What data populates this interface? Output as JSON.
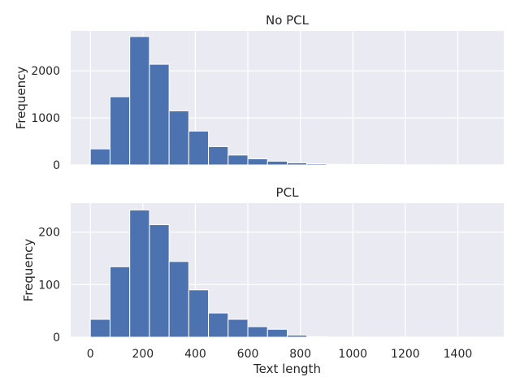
{
  "chart_data": [
    {
      "type": "bar",
      "title": "No PCL",
      "xlabel": "",
      "ylabel": "Frequency",
      "xlim": [
        -75,
        1575
      ],
      "ylim": [
        0,
        2850
      ],
      "bin_width": 75,
      "bins_start": [
        0,
        75,
        150,
        225,
        300,
        375,
        450,
        525,
        600,
        675,
        750,
        825,
        900,
        975,
        1050,
        1125,
        1200,
        1275,
        1350,
        1425
      ],
      "values": [
        340,
        1450,
        2730,
        2140,
        1150,
        720,
        390,
        210,
        130,
        80,
        45,
        25,
        12,
        8,
        5,
        3,
        2,
        2,
        1,
        1
      ],
      "x_ticks": [
        0,
        200,
        400,
        600,
        800,
        1000,
        1200,
        1400
      ],
      "x_tick_labels": [],
      "y_ticks": [
        0,
        1000,
        2000
      ],
      "y_tick_labels": [
        "0",
        "1000",
        "2000"
      ],
      "grid": true,
      "bar_color": "#4c72b0",
      "background": "#eaeaf2"
    },
    {
      "type": "bar",
      "title": "PCL",
      "xlabel": "Text length",
      "ylabel": "Frequency",
      "xlim": [
        -75,
        1575
      ],
      "ylim": [
        0,
        255
      ],
      "bin_width": 75,
      "bins_start": [
        0,
        75,
        150,
        225,
        300,
        375,
        450,
        525,
        600,
        675,
        750,
        825,
        900,
        975,
        1050,
        1125,
        1200,
        1275,
        1350,
        1425
      ],
      "values": [
        34,
        134,
        242,
        214,
        144,
        90,
        46,
        34,
        20,
        15,
        4,
        1,
        0,
        0,
        0,
        0,
        0,
        0,
        0,
        0
      ],
      "x_ticks": [
        0,
        200,
        400,
        600,
        800,
        1000,
        1200,
        1400
      ],
      "x_tick_labels": [
        "0",
        "200",
        "400",
        "600",
        "800",
        "1000",
        "1200",
        "1400"
      ],
      "y_ticks": [
        0,
        100,
        200
      ],
      "y_tick_labels": [
        "0",
        "100",
        "200"
      ],
      "grid": true,
      "bar_color": "#4c72b0",
      "background": "#eaeaf2"
    }
  ]
}
